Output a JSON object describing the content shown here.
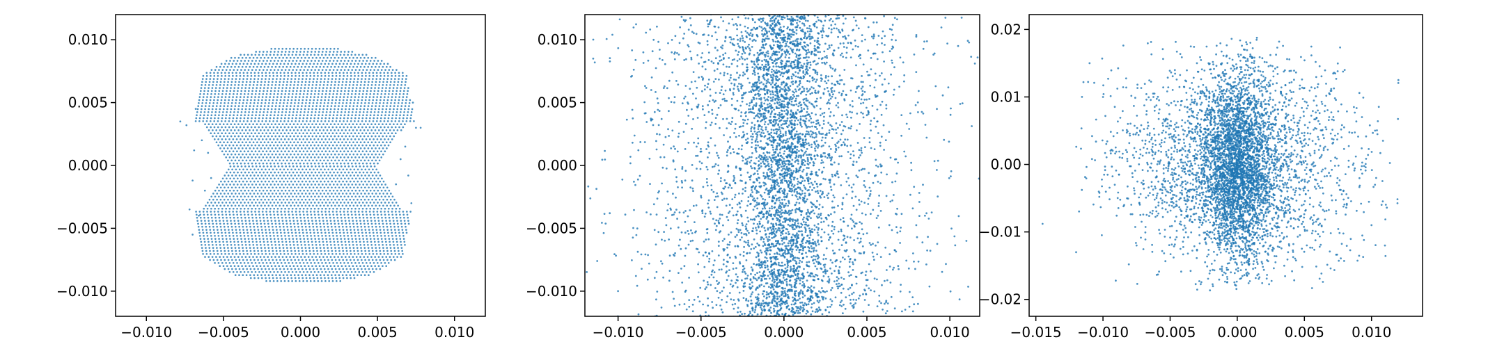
{
  "chart_data": [
    {
      "type": "scatter",
      "xlim": [
        -0.012,
        0.012
      ],
      "ylim": [
        -0.012,
        0.012
      ],
      "xticks": [
        "−0.010",
        "−0.005",
        "0.000",
        "0.005",
        "0.010"
      ],
      "xtick_values": [
        -0.01,
        -0.005,
        0,
        0.005,
        0.01
      ],
      "yticks": [
        "−0.010",
        "−0.005",
        "0.000",
        "0.005",
        "0.010"
      ],
      "ytick_values": [
        -0.01,
        -0.005,
        0,
        0.005,
        0.01
      ],
      "grid": false,
      "color": "#1f77b4",
      "points": [
        [
          -0.0078,
          0.0035
        ],
        [
          -0.0074,
          0.0032
        ],
        [
          -0.0072,
          -0.0035
        ],
        [
          -0.007,
          -0.0055
        ],
        [
          -0.0068,
          0.0045
        ],
        [
          -0.0066,
          -0.004
        ],
        [
          -0.007,
          -0.0012
        ],
        [
          -0.0069,
          0.0012
        ],
        [
          -0.0064,
          0.002
        ],
        [
          -0.0062,
          -0.002
        ],
        [
          0.0073,
          0.005
        ],
        [
          0.0075,
          0.003
        ],
        [
          0.0078,
          0.003
        ],
        [
          0.0072,
          -0.003
        ],
        [
          0.007,
          -0.0008
        ],
        [
          0.0068,
          0.0015
        ],
        [
          -0.006,
          0.001
        ],
        [
          -0.0058,
          -0.001
        ],
        [
          0.0065,
          0.0005
        ],
        [
          0.0062,
          -0.0015
        ]
      ]
    },
    {
      "type": "scatter",
      "xlim": [
        -0.012,
        0.0118
      ],
      "ylim": [
        -0.012,
        0.012
      ],
      "xticks": [
        "−0.010",
        "−0.005",
        "0.000",
        "0.005",
        "0.010"
      ],
      "xtick_values": [
        -0.01,
        -0.005,
        0,
        0.005,
        0.01
      ],
      "yticks": [
        "−0.010",
        "−0.005",
        "0.000",
        "0.005",
        "0.010"
      ],
      "ytick_values": [
        -0.01,
        -0.005,
        0,
        0.005,
        0.01
      ],
      "grid": false,
      "color": "#1f77b4",
      "points": [
        [
          0.0,
          0.002
        ],
        [
          -0.001,
          -0.003
        ],
        [
          0.0012,
          0.005
        ],
        [
          -0.0025,
          0.0085
        ],
        [
          0.003,
          -0.007
        ],
        [
          -0.0045,
          0.001
        ],
        [
          0.005,
          0.004
        ],
        [
          -0.006,
          -0.008
        ],
        [
          0.0065,
          0.01
        ],
        [
          -0.008,
          0.006
        ],
        [
          0.0085,
          -0.004
        ],
        [
          -0.01,
          -0.01
        ],
        [
          0.0105,
          0.0095
        ],
        [
          -0.0115,
          0.0085
        ],
        [
          0.011,
          -0.006
        ],
        [
          -0.0105,
          -0.0038
        ]
      ]
    },
    {
      "type": "scatter",
      "xlim": [
        -0.0155,
        0.0138
      ],
      "ylim": [
        -0.0225,
        0.0222
      ],
      "xticks": [
        "−0.015",
        "−0.010",
        "−0.005",
        "0.000",
        "0.005",
        "0.010"
      ],
      "xtick_values": [
        -0.015,
        -0.01,
        -0.005,
        0,
        0.005,
        0.01
      ],
      "yticks": [
        "−0.02",
        "−0.01",
        "0.00",
        "0.01",
        "0.02"
      ],
      "ytick_values": [
        -0.02,
        -0.01,
        0,
        0.01,
        0.02
      ],
      "grid": false,
      "color": "#1f77b4",
      "points": [
        [
          0.0,
          0.003
        ],
        [
          -0.0008,
          -0.008
        ],
        [
          0.001,
          0.012
        ],
        [
          -0.003,
          0.015
        ],
        [
          0.0035,
          -0.015
        ],
        [
          -0.0055,
          0.005
        ],
        [
          0.006,
          0.008
        ],
        [
          -0.0075,
          -0.012
        ],
        [
          0.008,
          0.014
        ],
        [
          -0.01,
          0.01
        ],
        [
          0.01,
          -0.009
        ],
        [
          -0.012,
          -0.013
        ],
        [
          0.012,
          0.0125
        ],
        [
          -0.0145,
          -0.0088
        ],
        [
          0.011,
          -0.012
        ],
        [
          -0.011,
          0.015
        ]
      ]
    }
  ]
}
